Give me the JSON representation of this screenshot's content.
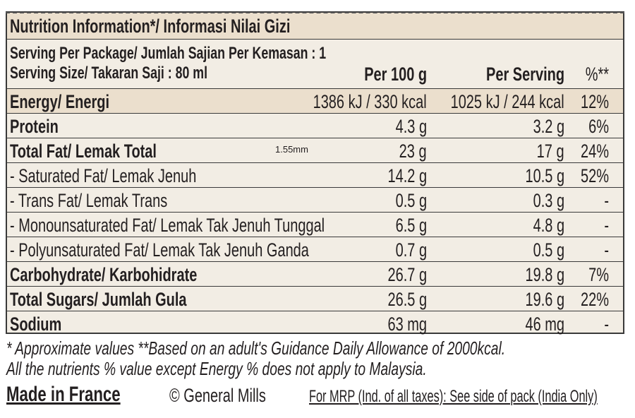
{
  "title": "Nutrition Information*/ Informasi Nilai Gizi",
  "serving_per_package": "Serving Per Package/ Jumlah Sajian Per Kemasan : 1",
  "serving_size": "Serving Size/ Takaran Saji : 80 ml",
  "columns": {
    "per100": "Per 100 g",
    "per_serving": "Per Serving",
    "percent": "%**"
  },
  "annotation": "1.55mm",
  "rows": [
    {
      "label": "Energy/ Energi",
      "per100": "1386 kJ / 330 kcal",
      "per_serving": "1025 kJ / 244 kcal",
      "percent": "12%"
    },
    {
      "label": "Protein",
      "per100": "4.3 g",
      "per_serving": "3.2 g",
      "percent": "6%"
    },
    {
      "label": "Total Fat/ Lemak Total",
      "per100": "23 g",
      "per_serving": "17 g",
      "percent": "24%"
    },
    {
      "label": "- Saturated Fat/ Lemak Jenuh",
      "per100": "14.2 g",
      "per_serving": "10.5 g",
      "percent": "52%"
    },
    {
      "label": "- Trans Fat/ Lemak Trans",
      "per100": "0.5 g",
      "per_serving": "0.3 g",
      "percent": "-"
    },
    {
      "label": "- Monounsaturated Fat/ Lemak Tak Jenuh Tunggal",
      "per100": "6.5 g",
      "per_serving": "4.8 g",
      "percent": "-"
    },
    {
      "label": "- Polyunsaturated Fat/ Lemak Tak Jenuh Ganda",
      "per100": "0.7 g",
      "per_serving": "0.5 g",
      "percent": "-"
    },
    {
      "label": "Carbohydrate/ Karbohidrate",
      "per100": "26.7 g",
      "per_serving": "19.8 g",
      "percent": "7%"
    },
    {
      "label": "Total Sugars/ Jumlah Gula",
      "per100": "26.5 g",
      "per_serving": "19.6 g",
      "percent": "22%"
    },
    {
      "label": "Sodium",
      "per100": "63 mg",
      "per_serving": "46 mg",
      "percent": "-"
    }
  ],
  "footnote1": "* Approximate values  **Based on an adult's  Guidance Daily Allowance of 2000kcal.",
  "footnote2": "All the nutrients % value except Energy % does not apply to Malaysia.",
  "made_in": "Made in France",
  "copyright": "© General Mills",
  "mrp": "For MRP (Ind. of all taxes): See side of pack (India Only)"
}
